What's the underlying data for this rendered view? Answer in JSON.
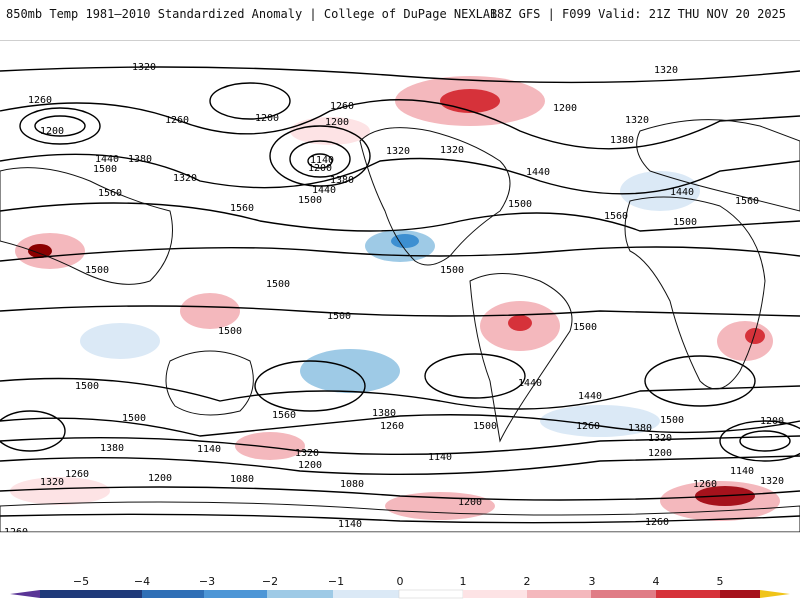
{
  "header": {
    "title_left": "850mb Temp 1981–2010 Standardized Anomaly | College of DuPage NEXLAB",
    "title_right": "18Z GFS | F099 Valid: 21Z THU NOV 20 2025"
  },
  "map": {
    "contour_labels": [
      "1320",
      "1320",
      "1260",
      "1260",
      "1200",
      "1200",
      "1260",
      "1200",
      "1200",
      "1200",
      "1320",
      "1440",
      "1380",
      "1500",
      "1320",
      "1560",
      "1560",
      "1380",
      "1440",
      "1500",
      "1140",
      "1320",
      "1320",
      "1380",
      "1440",
      "1560",
      "1500",
      "1560",
      "1500",
      "1500",
      "1500",
      "1500",
      "1500",
      "1500",
      "1500",
      "1500",
      "1440",
      "1440",
      "1560",
      "1500",
      "1380",
      "1440",
      "1500",
      "1500",
      "1260",
      "1380",
      "1320",
      "1200",
      "1140",
      "1320",
      "1260",
      "1200",
      "1080",
      "1140",
      "1200",
      "1080",
      "1200",
      "1260",
      "1380",
      "1320",
      "1260",
      "1140",
      "1200",
      "1140",
      "1260",
      "1320",
      "1260"
    ],
    "colors": {
      "strong_warm": "#8b0000",
      "warm": "#d6323a",
      "light_warm": "#f4b8bd",
      "pale_warm": "#fde3e5",
      "pale_cool": "#dbe9f6",
      "light_cool": "#9ecae6",
      "cool": "#3d8fd1",
      "land_outline": "#111111",
      "contour": "#000000"
    }
  },
  "legend": {
    "tick_labels": [
      "−5",
      "−4",
      "−3",
      "−2",
      "−1",
      "0",
      "1",
      "2",
      "3",
      "4",
      "5"
    ],
    "colors": [
      "#5a3596",
      "#1f3a7a",
      "#2f6fb6",
      "#4d96d6",
      "#9ecae6",
      "#dbe9f6",
      "#ffffff",
      "#fde3e5",
      "#f4b8bd",
      "#e07c86",
      "#d6323a",
      "#a5121c",
      "#f0c419"
    ]
  }
}
